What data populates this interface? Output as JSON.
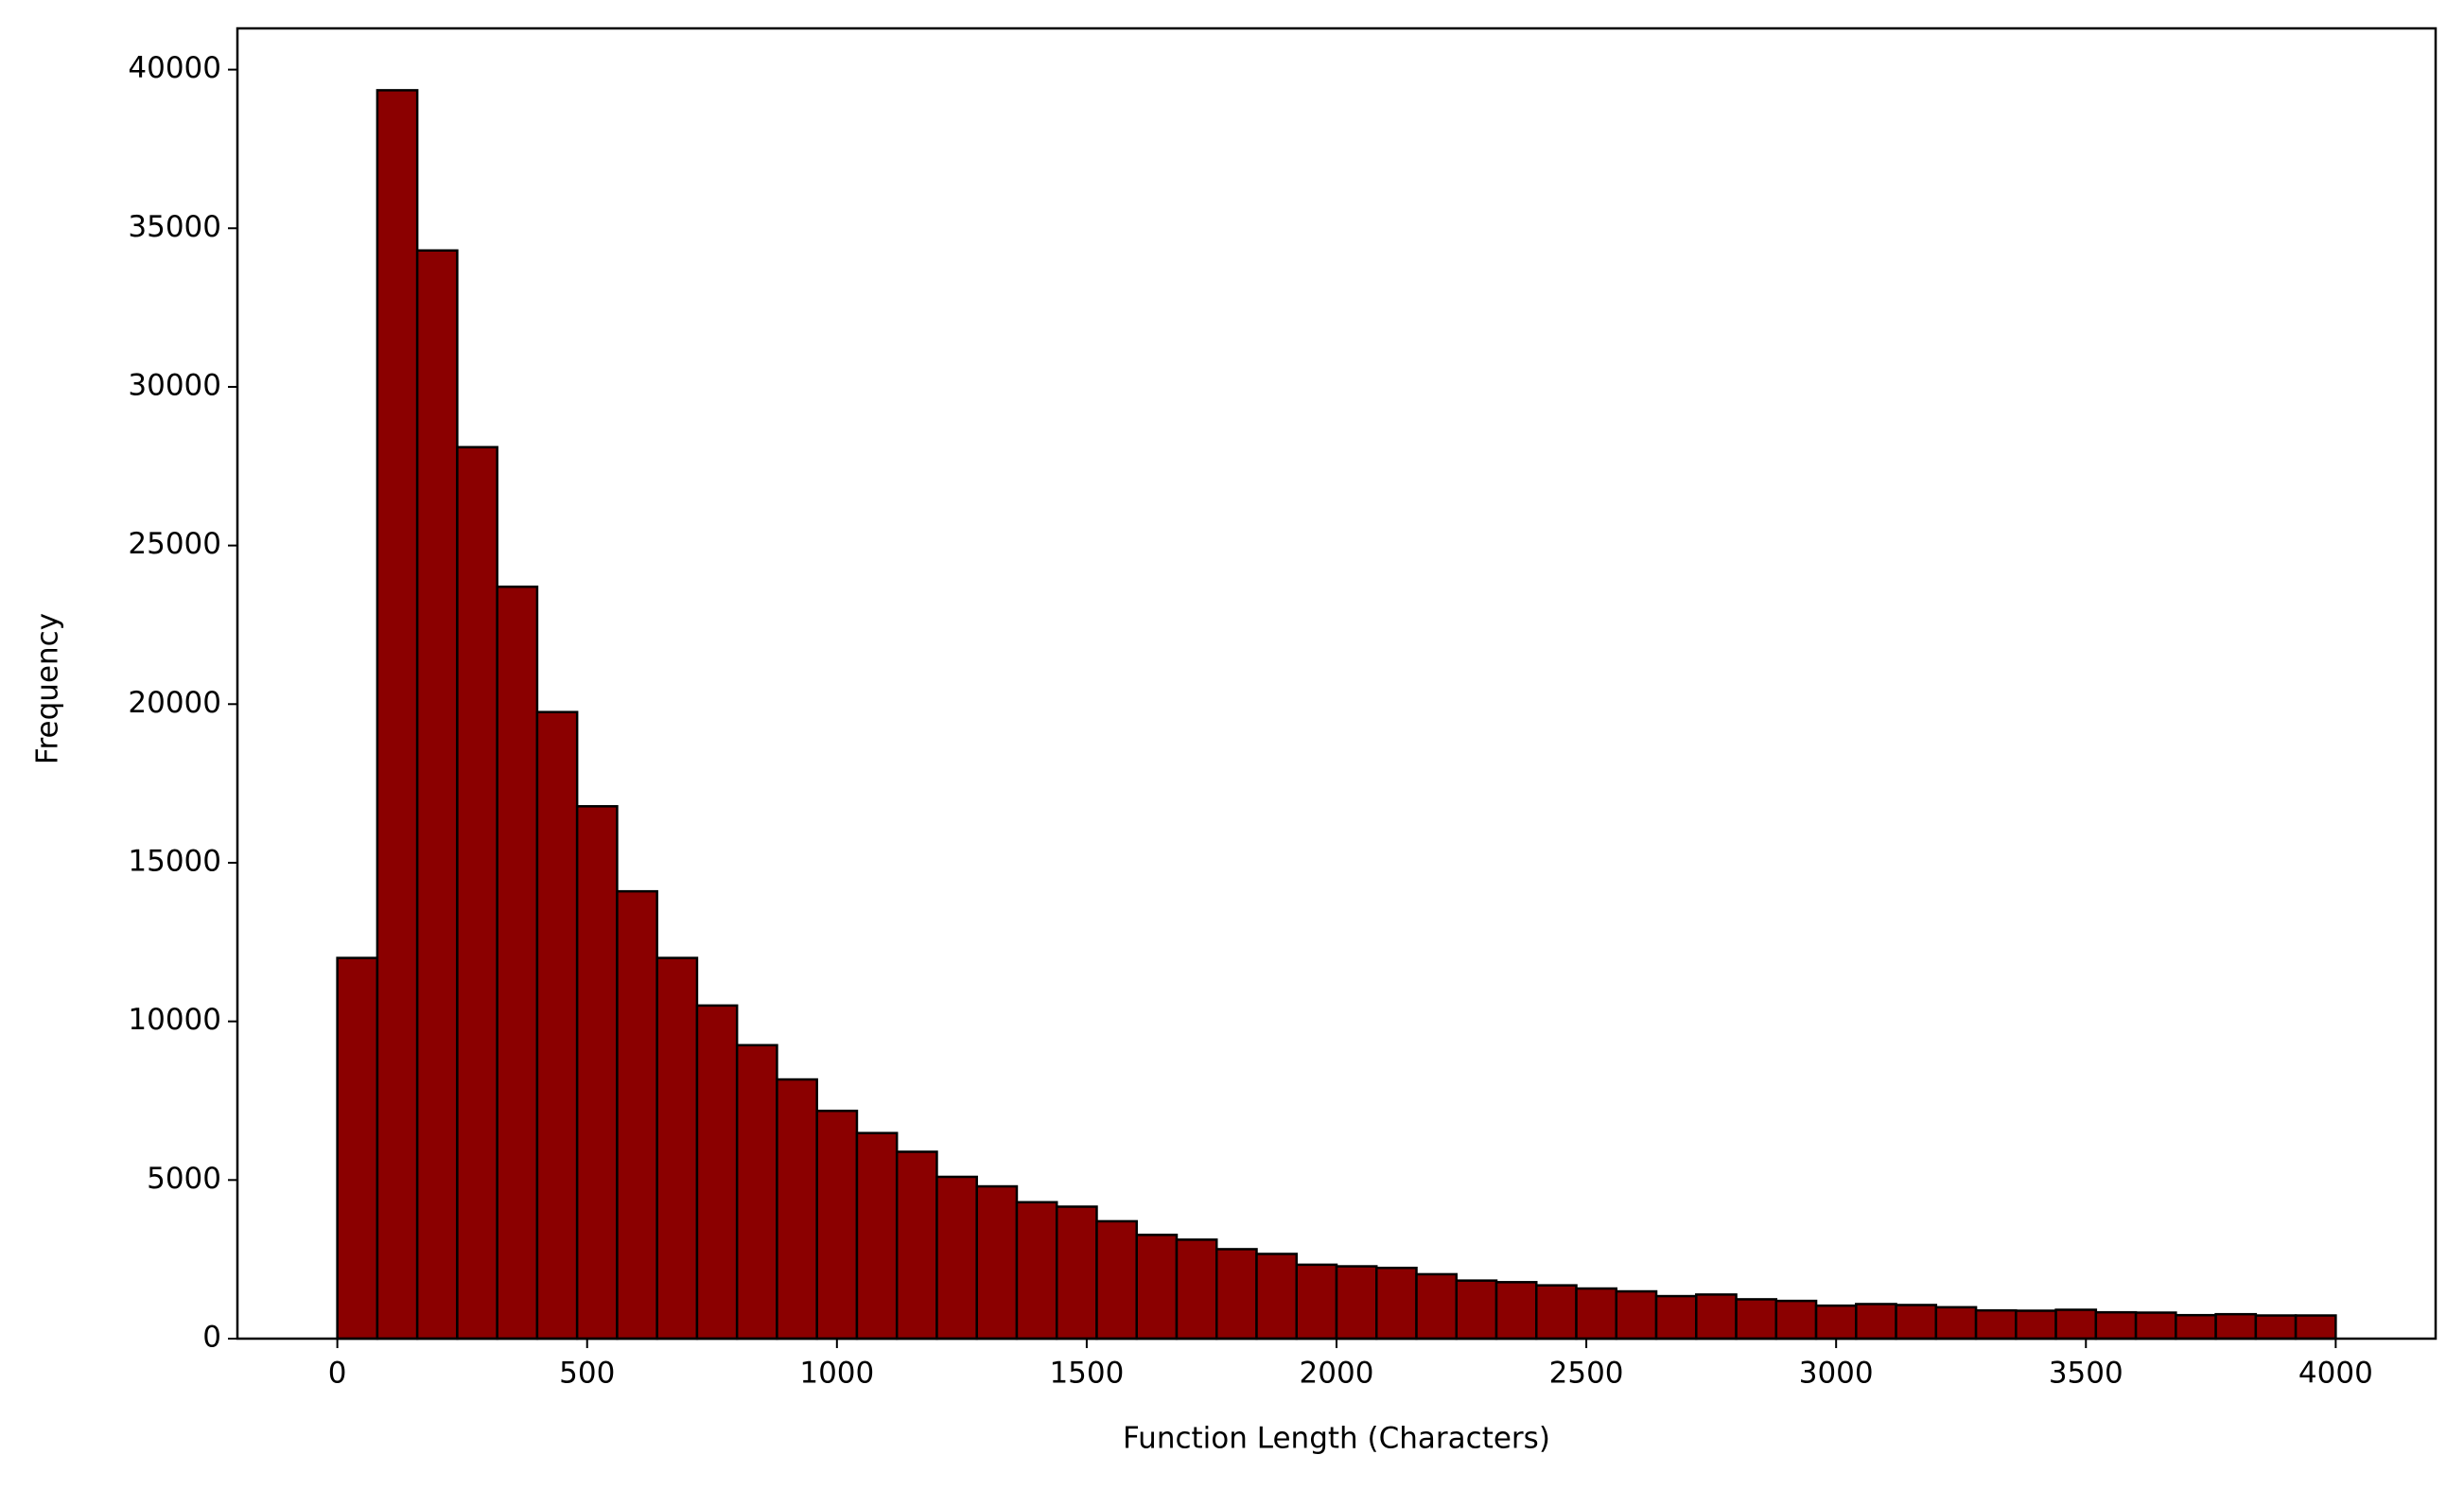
{
  "chart_data": {
    "type": "histogram",
    "xlabel": "Function Length (Characters)",
    "ylabel": "Frequency",
    "bins": [
      0,
      80,
      160,
      240,
      320,
      400,
      480,
      560,
      640,
      720,
      800,
      880,
      960,
      1040,
      1120,
      1200,
      1280,
      1360,
      1440,
      1520,
      1600,
      1680,
      1760,
      1840,
      1920,
      2000,
      2080,
      2160,
      2240,
      2320,
      2400,
      2480,
      2560,
      2640,
      2720,
      2800,
      2880,
      2960,
      3040,
      3120,
      3200,
      3280,
      3360,
      3440,
      3520,
      3600,
      3680,
      3760,
      3840,
      3920,
      4000
    ],
    "values": [
      12000,
      39350,
      34300,
      28100,
      23700,
      19750,
      16780,
      14100,
      12000,
      10500,
      9250,
      8170,
      7180,
      6480,
      5890,
      5100,
      4800,
      4300,
      4160,
      3700,
      3270,
      3120,
      2820,
      2670,
      2330,
      2280,
      2230,
      2030,
      1830,
      1780,
      1680,
      1580,
      1490,
      1340,
      1390,
      1240,
      1190,
      1040,
      1090,
      1060,
      990,
      890,
      880,
      910,
      830,
      820,
      740,
      770,
      730,
      730
    ],
    "color": "#8b0000",
    "edgecolor": "#000000",
    "xlim": [
      -200,
      4200
    ],
    "ylim": [
      0,
      41300
    ],
    "xticks": [
      0,
      500,
      1000,
      1500,
      2000,
      2500,
      3000,
      3500,
      4000
    ],
    "yticks": [
      0,
      5000,
      10000,
      15000,
      20000,
      25000,
      30000,
      35000,
      40000
    ]
  }
}
